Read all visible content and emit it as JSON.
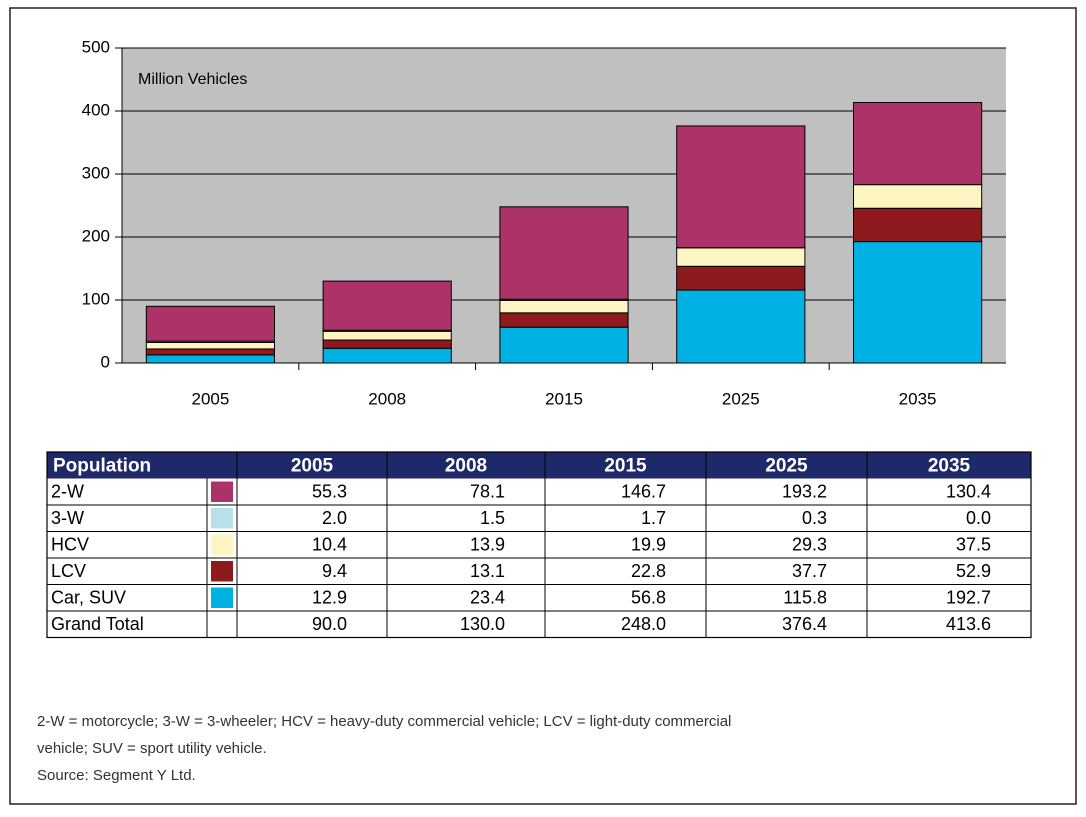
{
  "chart_data": {
    "type": "stacked_bar",
    "annotation": "Million Vehicles",
    "categories": [
      "2005",
      "2008",
      "2015",
      "2025",
      "2035"
    ],
    "series": [
      {
        "name": "2-W",
        "color": "#ad326a",
        "values": [
          55.3,
          78.1,
          146.7,
          193.2,
          130.4
        ],
        "value_labels": [
          "55.3",
          "78.1",
          "146.7",
          "193.2",
          "130.4"
        ]
      },
      {
        "name": "3-W",
        "color": "#b9e0ea",
        "values": [
          2,
          1.5,
          1.7,
          0.3,
          0
        ],
        "value_labels": [
          "2.0",
          "1.5",
          "1.7",
          "0.3",
          "0.0"
        ]
      },
      {
        "name": "HCV",
        "color": "#fdf6c2",
        "values": [
          10.4,
          13.9,
          19.9,
          29.3,
          37.5
        ],
        "value_labels": [
          "10.4",
          "13.9",
          "19.9",
          "29.3",
          "37.5"
        ]
      },
      {
        "name": "LCV",
        "color": "#8e1a1d",
        "values": [
          9.4,
          13.1,
          22.8,
          37.7,
          52.9
        ],
        "value_labels": [
          "9.4",
          "13.1",
          "22.8",
          "37.7",
          "52.9"
        ]
      },
      {
        "name": "Car, SUV",
        "color": "#00b2e3",
        "values": [
          12.9,
          23.4,
          56.8,
          115.8,
          192.7
        ],
        "value_labels": [
          "12.9",
          "23.4",
          "56.8",
          "115.8",
          "192.7"
        ]
      }
    ],
    "ylim": [
      0,
      500
    ],
    "yticks": [
      0,
      100,
      200,
      300,
      400,
      500
    ],
    "grid": true,
    "plot_background": "#c0c0c0"
  },
  "table": {
    "header": "Population",
    "total_label": "Grand Total",
    "totals": [
      "90.0",
      "130.0",
      "248.0",
      "376.4",
      "413.6"
    ]
  },
  "notes": [
    "2-W = motorcycle; 3-W = 3-wheeler; HCV = heavy-duty commercial vehicle; LCV = light-duty commercial",
    "vehicle; SUV = sport utility vehicle.",
    "Source: Segment Y Ltd."
  ]
}
